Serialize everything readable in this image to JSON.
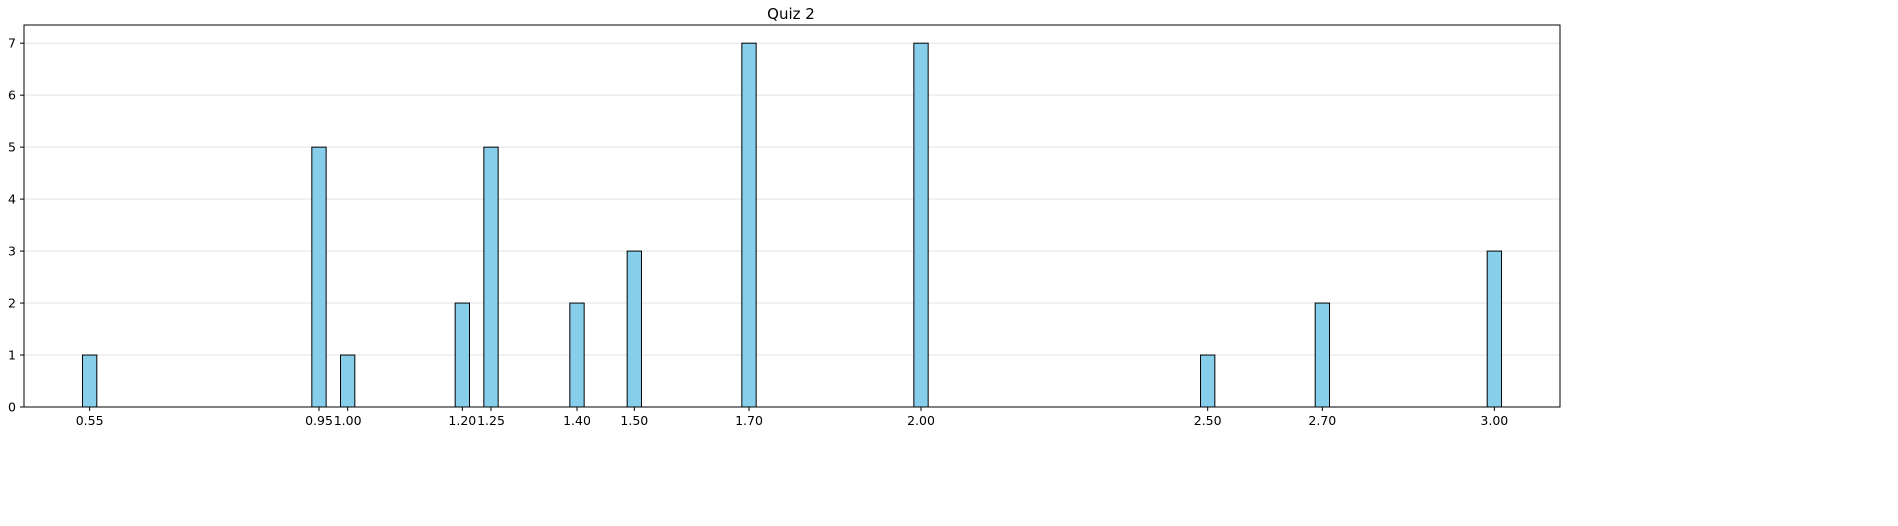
{
  "chart_data": {
    "type": "bar",
    "title": "Quiz 2",
    "xlabel": "",
    "ylabel": "",
    "x": [
      0.55,
      0.95,
      1.0,
      1.2,
      1.25,
      1.4,
      1.5,
      1.7,
      2.0,
      2.5,
      2.7,
      3.0
    ],
    "x_tick_labels": [
      "0.55",
      "0.95",
      "1.00",
      "1.20",
      "1.25",
      "1.40",
      "1.50",
      "1.70",
      "2.00",
      "2.50",
      "2.70",
      "3.00"
    ],
    "values": [
      1,
      5,
      1,
      2,
      5,
      2,
      3,
      7,
      7,
      1,
      2,
      3
    ],
    "xlim": [
      0.4355,
      3.1145
    ],
    "ylim": [
      0,
      7.35
    ],
    "y_ticks": [
      0,
      1,
      2,
      3,
      4,
      5,
      6,
      7
    ],
    "bar_width": 0.025,
    "grid": "y-only",
    "colors": {
      "bar_fill": "#87ceeb",
      "bar_edge": "#000000",
      "grid": "#e3e3e3"
    }
  }
}
